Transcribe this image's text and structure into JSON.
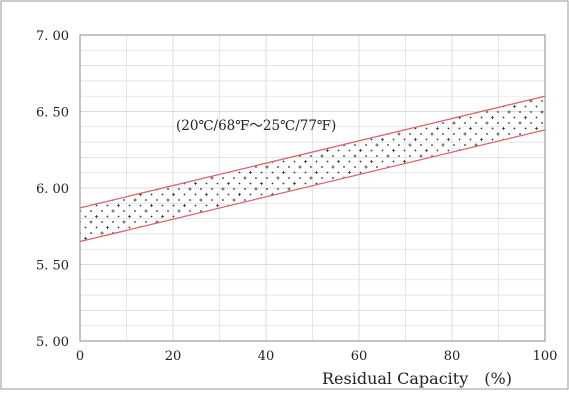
{
  "chart_data": {
    "type": "area",
    "xlim": [
      0,
      100
    ],
    "ylim": [
      5.0,
      7.0
    ],
    "x_ticks": [
      "0",
      "20",
      "40",
      "60",
      "80",
      "100"
    ],
    "y_ticks": [
      "5. 00",
      "5. 50",
      "6. 00",
      "6. 50",
      "7. 00"
    ],
    "xlabel": "Residual Capacity　(%)",
    "ylabel": "",
    "grid": true,
    "annotation": "(20℃/68℉～25℃/77℉)",
    "band": {
      "x": [
        0,
        100
      ],
      "upper": [
        5.87,
        6.6
      ],
      "lower": [
        5.65,
        6.38
      ]
    },
    "colors": {
      "boundary": "#d9646e",
      "grid": "#dcdcdc",
      "frame": "#8a8a8a",
      "dots": "#333333"
    }
  }
}
